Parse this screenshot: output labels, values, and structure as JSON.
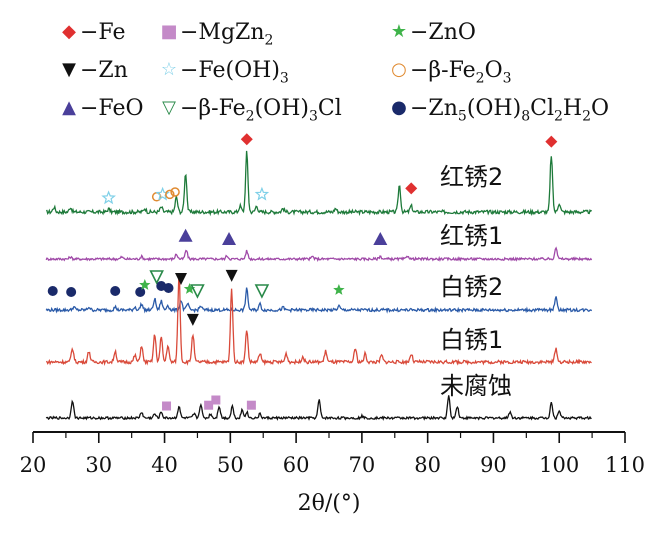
{
  "chart_data": {
    "type": "line",
    "xlabel": "2θ/(°)",
    "xlim": [
      20,
      110
    ],
    "x_ticks": [
      "20",
      "30",
      "40",
      "50",
      "60",
      "70",
      "80",
      "90",
      "100",
      "110"
    ],
    "grid": false,
    "legend_position": "top",
    "legend": [
      {
        "symbol": "diamond-filled",
        "color": "#e03030",
        "label": "−Fe"
      },
      {
        "symbol": "square-filled",
        "color": "#c48ac8",
        "label": "−MgZn2"
      },
      {
        "symbol": "star-filled",
        "color": "#3fb34a",
        "label": "−ZnO"
      },
      {
        "symbol": "triangle-down-filled",
        "color": "#111111",
        "label": "−Zn"
      },
      {
        "symbol": "star-open",
        "color": "#7fd0e8",
        "label": "−Fe(OH)3"
      },
      {
        "symbol": "circle-open",
        "color": "#e08a30",
        "label": "−β-Fe2O3"
      },
      {
        "symbol": "triangle-up-filled",
        "color": "#4a3f9a",
        "label": "−FeO"
      },
      {
        "symbol": "triangle-down-open",
        "color": "#2a8a4a",
        "label": "−β-Fe2(OH)3Cl"
      },
      {
        "symbol": "circle-filled",
        "color": "#1a2a6a",
        "label": "−Zn5(OH)8Cl2H2O"
      }
    ],
    "series": [
      {
        "name": "红锈2",
        "color": "#1e7a3a",
        "baseline": 0.0,
        "peaks": [
          [
            23.2,
            0.08
          ],
          [
            25.7,
            0.08
          ],
          [
            31.5,
            0.05
          ],
          [
            37.0,
            0.06
          ],
          [
            39.5,
            0.08
          ],
          [
            41.8,
            0.25
          ],
          [
            43.2,
            0.65
          ],
          [
            51.5,
            0.1
          ],
          [
            52.5,
            1.0
          ],
          [
            54.0,
            0.1
          ],
          [
            58.0,
            0.06
          ],
          [
            66.0,
            0.06
          ],
          [
            75.7,
            0.45
          ],
          [
            77.5,
            0.1
          ],
          [
            98.8,
            0.95
          ],
          [
            100.0,
            0.15
          ]
        ],
        "markers": [
          {
            "x": 31.5,
            "symbol": "star-open",
            "color": "#7fd0e8",
            "level": 0.1
          },
          {
            "x": 38.8,
            "symbol": "circle-open",
            "color": "#e08a30",
            "level": 0.12
          },
          {
            "x": 39.7,
            "symbol": "star-open",
            "color": "#7fd0e8",
            "level": 0.16
          },
          {
            "x": 40.8,
            "symbol": "circle-open",
            "color": "#e08a30",
            "level": 0.16
          },
          {
            "x": 41.6,
            "symbol": "circle-open",
            "color": "#e08a30",
            "level": 0.2
          },
          {
            "x": 52.5,
            "symbol": "diamond-filled",
            "color": "#e03030",
            "level": 1.08
          },
          {
            "x": 54.8,
            "symbol": "star-open",
            "color": "#7fd0e8",
            "level": 0.16
          },
          {
            "x": 77.5,
            "symbol": "diamond-filled",
            "color": "#e03030",
            "level": 0.26
          },
          {
            "x": 98.8,
            "symbol": "diamond-filled",
            "color": "#e03030",
            "level": 1.04
          }
        ]
      },
      {
        "name": "红锈1",
        "color": "#a04aa8",
        "baseline": 0.0,
        "peaks": [
          [
            25.7,
            0.05
          ],
          [
            33.5,
            0.05
          ],
          [
            36.5,
            0.06
          ],
          [
            41.8,
            0.12
          ],
          [
            43.3,
            0.22
          ],
          [
            49.5,
            0.08
          ],
          [
            52.5,
            0.2
          ],
          [
            62.5,
            0.06
          ],
          [
            72.8,
            0.07
          ],
          [
            77.0,
            0.08
          ],
          [
            99.5,
            0.3
          ]
        ],
        "markers": [
          {
            "x": 43.2,
            "symbol": "triangle-up-filled",
            "color": "#4a3f9a",
            "level": 0.38
          },
          {
            "x": 49.8,
            "symbol": "triangle-up-filled",
            "color": "#4a3f9a",
            "level": 0.3
          },
          {
            "x": 72.8,
            "symbol": "triangle-up-filled",
            "color": "#4a3f9a",
            "level": 0.3
          }
        ]
      },
      {
        "name": "白锈2",
        "color": "#2a5aa8",
        "baseline": 0.0,
        "peaks": [
          [
            26.2,
            0.06
          ],
          [
            28.5,
            0.06
          ],
          [
            32.5,
            0.06
          ],
          [
            35.5,
            0.06
          ],
          [
            36.5,
            0.12
          ],
          [
            38.5,
            0.22
          ],
          [
            39.5,
            0.18
          ],
          [
            40.5,
            0.1
          ],
          [
            42.5,
            0.2
          ],
          [
            43.5,
            0.12
          ],
          [
            45.5,
            0.08
          ],
          [
            52.5,
            0.42
          ],
          [
            54.5,
            0.12
          ],
          [
            58.0,
            0.05
          ],
          [
            66.5,
            0.08
          ],
          [
            99.5,
            0.28
          ]
        ],
        "markers": [
          {
            "x": 23.0,
            "symbol": "circle-filled",
            "color": "#1a2a6a",
            "level": 0.22
          },
          {
            "x": 25.8,
            "symbol": "circle-filled",
            "color": "#1a2a6a",
            "level": 0.2
          },
          {
            "x": 32.5,
            "symbol": "circle-filled",
            "color": "#1a2a6a",
            "level": 0.22
          },
          {
            "x": 36.3,
            "symbol": "circle-filled",
            "color": "#1a2a6a",
            "level": 0.2
          },
          {
            "x": 37.0,
            "symbol": "star-filled",
            "color": "#3fb34a",
            "level": 0.34
          },
          {
            "x": 38.8,
            "symbol": "triangle-down-open",
            "color": "#2a8a4a",
            "level": 0.5
          },
          {
            "x": 39.5,
            "symbol": "circle-filled",
            "color": "#1a2a6a",
            "level": 0.32
          },
          {
            "x": 40.6,
            "symbol": "circle-filled",
            "color": "#1a2a6a",
            "level": 0.28
          },
          {
            "x": 42.5,
            "symbol": "triangle-down-filled",
            "color": "#111111",
            "level": 0.46
          },
          {
            "x": 43.8,
            "symbol": "star-filled",
            "color": "#3fb34a",
            "level": 0.26
          },
          {
            "x": 45.0,
            "symbol": "triangle-down-open",
            "color": "#2a8a4a",
            "level": 0.22
          },
          {
            "x": 54.8,
            "symbol": "triangle-down-open",
            "color": "#2a8a4a",
            "level": 0.22
          },
          {
            "x": 66.5,
            "symbol": "star-filled",
            "color": "#3fb34a",
            "level": 0.24
          }
        ]
      },
      {
        "name": "白锈1",
        "color": "#d94a3a",
        "baseline": 0.0,
        "peaks": [
          [
            26.0,
            0.25
          ],
          [
            28.5,
            0.2
          ],
          [
            32.5,
            0.2
          ],
          [
            35.5,
            0.12
          ],
          [
            36.5,
            0.3
          ],
          [
            38.5,
            0.5
          ],
          [
            39.5,
            0.45
          ],
          [
            40.5,
            0.3
          ],
          [
            42.2,
            1.6
          ],
          [
            44.3,
            0.5
          ],
          [
            50.2,
            1.35
          ],
          [
            52.5,
            0.6
          ],
          [
            54.5,
            0.15
          ],
          [
            58.5,
            0.15
          ],
          [
            61.0,
            0.1
          ],
          [
            64.5,
            0.2
          ],
          [
            69.0,
            0.25
          ],
          [
            70.5,
            0.15
          ],
          [
            73.0,
            0.12
          ],
          [
            77.5,
            0.15
          ],
          [
            99.5,
            0.25
          ]
        ],
        "markers": [
          {
            "x": 44.3,
            "symbol": "triangle-down-filled",
            "color": "#111111",
            "level": 0.62
          },
          {
            "x": 50.2,
            "symbol": "triangle-down-filled",
            "color": "#111111",
            "level": 1.42
          }
        ]
      },
      {
        "name": "未腐蚀",
        "color": "#111111",
        "baseline": 0.0,
        "peaks": [
          [
            26.0,
            0.45
          ],
          [
            36.5,
            0.15
          ],
          [
            38.5,
            0.1
          ],
          [
            39.5,
            0.15
          ],
          [
            42.2,
            0.3
          ],
          [
            44.5,
            0.1
          ],
          [
            45.5,
            0.35
          ],
          [
            47.0,
            0.1
          ],
          [
            48.3,
            0.3
          ],
          [
            50.3,
            0.3
          ],
          [
            51.8,
            0.2
          ],
          [
            52.5,
            0.15
          ],
          [
            54.5,
            0.1
          ],
          [
            63.5,
            0.45
          ],
          [
            70.0,
            0.05
          ],
          [
            83.2,
            0.55
          ],
          [
            84.5,
            0.3
          ],
          [
            92.5,
            0.15
          ],
          [
            98.8,
            0.4
          ],
          [
            100.0,
            0.2
          ]
        ],
        "markers": [
          {
            "x": 40.3,
            "symbol": "square-filled",
            "color": "#c48ac8",
            "level": 0.1
          },
          {
            "x": 46.7,
            "symbol": "square-filled",
            "color": "#c48ac8",
            "level": 0.12
          },
          {
            "x": 47.8,
            "symbol": "square-filled",
            "color": "#c48ac8",
            "level": 0.25
          },
          {
            "x": 53.2,
            "symbol": "square-filled",
            "color": "#c48ac8",
            "level": 0.12
          }
        ]
      }
    ]
  }
}
